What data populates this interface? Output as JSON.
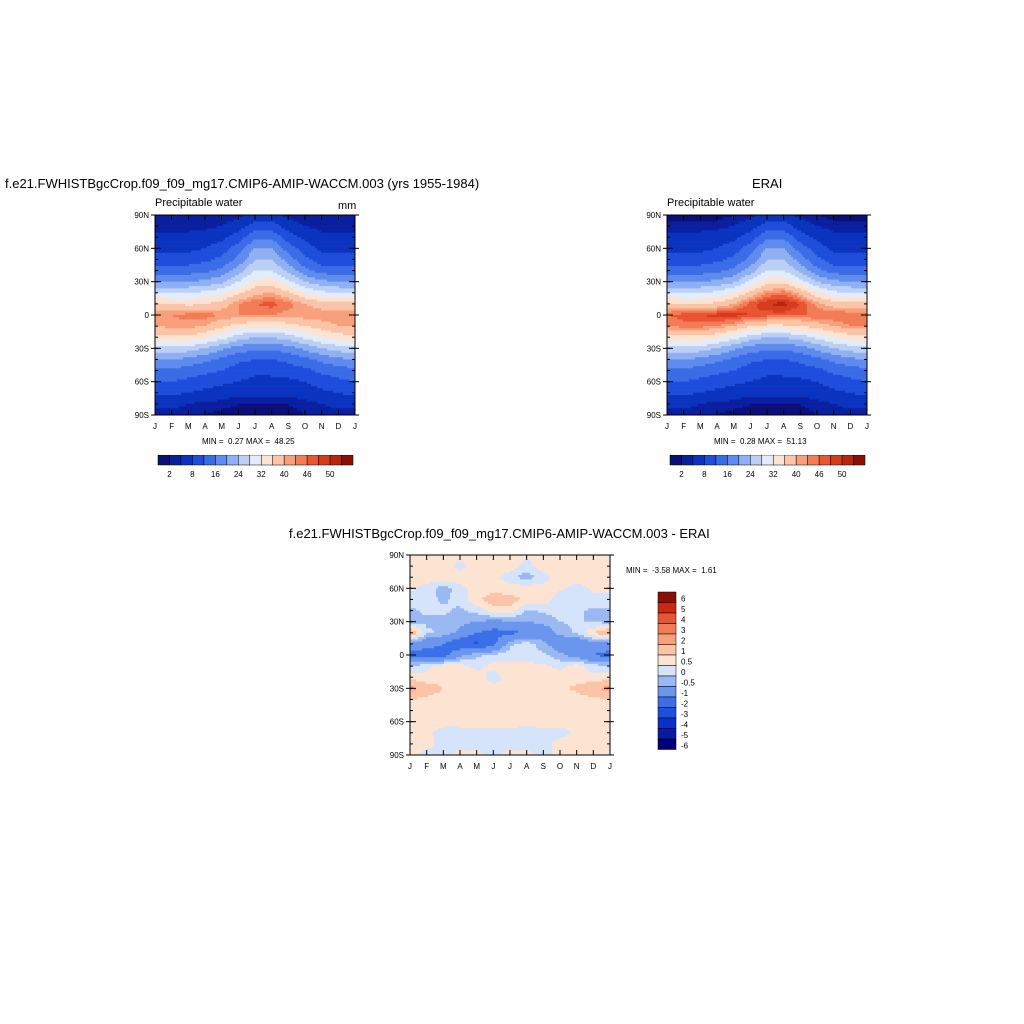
{
  "palette": {
    "main": [
      "#0a0f7a",
      "#0a1fa0",
      "#0a34c0",
      "#1f4ddc",
      "#3a6ce8",
      "#5e8bed",
      "#8fb0f2",
      "#bcd0f6",
      "#e3ecfb",
      "#fde4d2",
      "#fbc4a6",
      "#f8a07c",
      "#f27c55",
      "#e95533",
      "#d83a1e",
      "#b9260e",
      "#8b1004"
    ],
    "diff": [
      "#00007a",
      "#0a1aa0",
      "#0a30c8",
      "#1e50e0",
      "#3a6fe8",
      "#6a96ee",
      "#9ab9f3",
      "#d5e4fa",
      "#fde4d2",
      "#fbc4a6",
      "#f8a07c",
      "#f27c55",
      "#e95533",
      "#c72a10",
      "#8b1004"
    ]
  },
  "panels": {
    "model": {
      "title": "f.e21.FWHISTBgcCrop.f09_f09_mg17.CMIP6-AMIP-WACCM.003 (yrs 1955-1984)",
      "left_label": "Precipitable water",
      "right_label": "mm",
      "min_label": "MIN =",
      "min_value": "0.27",
      "max_label": "MAX =",
      "max_value": "48.25"
    },
    "obs": {
      "title": "ERAI",
      "left_label": "Precipitable water",
      "min_label": "MIN =",
      "min_value": "0.28",
      "max_label": "MAX =",
      "max_value": "51.13"
    },
    "diff": {
      "title": "f.e21.FWHISTBgcCrop.f09_f09_mg17.CMIP6-AMIP-WACCM.003 - ERAI",
      "min_label": "MIN =",
      "min_value": "-3.58",
      "max_label": "MAX =",
      "max_value": "1.61"
    }
  },
  "chart_data": [
    {
      "type": "heatmap",
      "panel": "model",
      "title": "f.e21.FWHISTBgcCrop.f09_f09_mg17.CMIP6-AMIP-WACCM.003 (yrs 1955-1984)",
      "subtitle_left": "Precipitable water",
      "units": "mm",
      "x_ticks": [
        "J",
        "F",
        "M",
        "A",
        "M",
        "J",
        "J",
        "A",
        "S",
        "O",
        "N",
        "D",
        "J"
      ],
      "y_ticks": [
        "90N",
        "60N",
        "30N",
        "0",
        "30S",
        "60S",
        "90S"
      ],
      "y_values": [
        90,
        60,
        30,
        0,
        -30,
        -60,
        -90
      ],
      "zmin": 0.27,
      "zmax": 48.25,
      "colorbar_labels": [
        "2",
        "8",
        "16",
        "24",
        "32",
        "40",
        "46",
        "50"
      ],
      "lat": [
        90,
        80,
        70,
        60,
        50,
        40,
        30,
        20,
        10,
        0,
        -10,
        -20,
        -30,
        -40,
        -50,
        -60,
        -70,
        -80,
        -90
      ],
      "months": [
        "Jan",
        "Feb",
        "Mar",
        "Apr",
        "May",
        "Jun",
        "Jul",
        "Aug",
        "Sep",
        "Oct",
        "Nov",
        "Dec",
        "Jan"
      ],
      "values": [
        [
          2,
          2,
          2,
          2,
          2,
          3,
          5,
          5,
          3,
          2,
          2,
          2,
          2
        ],
        [
          3,
          3,
          3,
          3,
          4,
          6,
          10,
          10,
          6,
          4,
          3,
          3,
          3
        ],
        [
          5,
          5,
          5,
          6,
          7,
          10,
          15,
          15,
          10,
          7,
          5,
          5,
          5
        ],
        [
          7,
          7,
          7,
          8,
          10,
          14,
          20,
          20,
          14,
          10,
          7,
          7,
          7
        ],
        [
          10,
          10,
          10,
          11,
          13,
          17,
          24,
          24,
          18,
          13,
          10,
          10,
          10
        ],
        [
          14,
          14,
          14,
          15,
          17,
          22,
          28,
          28,
          23,
          17,
          14,
          14,
          14
        ],
        [
          20,
          20,
          20,
          21,
          23,
          28,
          33,
          34,
          29,
          24,
          21,
          20,
          20
        ],
        [
          28,
          28,
          28,
          29,
          31,
          35,
          39,
          40,
          37,
          32,
          29,
          28,
          28
        ],
        [
          37,
          36,
          35,
          36,
          38,
          42,
          44,
          45,
          43,
          40,
          38,
          37,
          37
        ],
        [
          42,
          42,
          43,
          43,
          42,
          42,
          42,
          42,
          41,
          42,
          42,
          42,
          42
        ],
        [
          40,
          41,
          41,
          40,
          37,
          34,
          33,
          33,
          34,
          36,
          38,
          40,
          40
        ],
        [
          35,
          35,
          35,
          33,
          30,
          26,
          24,
          24,
          26,
          29,
          32,
          34,
          35
        ],
        [
          27,
          27,
          26,
          24,
          21,
          18,
          17,
          17,
          18,
          21,
          24,
          26,
          27
        ],
        [
          20,
          20,
          19,
          17,
          15,
          13,
          12,
          12,
          13,
          15,
          17,
          19,
          20
        ],
        [
          15,
          15,
          14,
          13,
          12,
          10,
          9,
          9,
          10,
          11,
          13,
          14,
          15
        ],
        [
          12,
          12,
          11,
          10,
          9,
          8,
          7,
          7,
          7,
          8,
          10,
          11,
          12
        ],
        [
          9,
          9,
          8,
          7,
          6,
          5,
          5,
          5,
          5,
          6,
          7,
          8,
          9
        ],
        [
          5,
          5,
          4,
          3,
          3,
          2,
          2,
          2,
          2,
          3,
          4,
          5,
          5
        ],
        [
          3,
          3,
          2,
          2,
          1,
          1,
          1,
          1,
          1,
          2,
          2,
          3,
          3
        ]
      ]
    },
    {
      "type": "heatmap",
      "panel": "obs",
      "title": "ERAI",
      "subtitle_left": "Precipitable water",
      "x_ticks": [
        "J",
        "F",
        "M",
        "A",
        "M",
        "J",
        "J",
        "A",
        "S",
        "O",
        "N",
        "D",
        "J"
      ],
      "y_ticks": [
        "90N",
        "60N",
        "30N",
        "0",
        "30S",
        "60S",
        "90S"
      ],
      "y_values": [
        90,
        60,
        30,
        0,
        -30,
        -60,
        -90
      ],
      "zmin": 0.28,
      "zmax": 51.13,
      "colorbar_labels": [
        "2",
        "8",
        "16",
        "24",
        "32",
        "40",
        "46",
        "50"
      ],
      "lat": [
        90,
        80,
        70,
        60,
        50,
        40,
        30,
        20,
        10,
        0,
        -10,
        -20,
        -30,
        -40,
        -50,
        -60,
        -70,
        -80,
        -90
      ],
      "months": [
        "Jan",
        "Feb",
        "Mar",
        "Apr",
        "May",
        "Jun",
        "Jul",
        "Aug",
        "Sep",
        "Oct",
        "Nov",
        "Dec",
        "Jan"
      ],
      "values": [
        [
          1,
          1,
          1,
          1,
          2,
          3,
          5,
          5,
          3,
          2,
          1,
          1,
          1
        ],
        [
          3,
          3,
          3,
          3,
          4,
          6,
          10,
          10,
          6,
          4,
          3,
          3,
          3
        ],
        [
          5,
          5,
          5,
          6,
          7,
          10,
          15,
          15,
          10,
          7,
          5,
          5,
          5
        ],
        [
          7,
          7,
          7,
          8,
          10,
          14,
          20,
          20,
          14,
          10,
          7,
          7,
          7
        ],
        [
          10,
          10,
          10,
          11,
          13,
          17,
          24,
          24,
          18,
          13,
          10,
          10,
          10
        ],
        [
          14,
          14,
          14,
          15,
          17,
          22,
          28,
          28,
          23,
          17,
          14,
          14,
          14
        ],
        [
          20,
          20,
          20,
          21,
          23,
          29,
          34,
          35,
          30,
          24,
          21,
          20,
          20
        ],
        [
          28,
          28,
          28,
          29,
          32,
          37,
          42,
          43,
          39,
          33,
          29,
          28,
          28
        ],
        [
          37,
          36,
          36,
          37,
          40,
          45,
          48,
          49,
          46,
          41,
          38,
          37,
          37
        ],
        [
          44,
          45,
          46,
          47,
          47,
          46,
          45,
          45,
          44,
          44,
          44,
          44,
          44
        ],
        [
          42,
          43,
          43,
          42,
          40,
          36,
          35,
          35,
          36,
          38,
          40,
          42,
          42
        ],
        [
          35,
          35,
          35,
          33,
          30,
          26,
          24,
          24,
          26,
          29,
          32,
          34,
          35
        ],
        [
          27,
          27,
          26,
          24,
          21,
          18,
          17,
          17,
          18,
          21,
          24,
          26,
          27
        ],
        [
          20,
          20,
          19,
          17,
          15,
          13,
          12,
          12,
          13,
          15,
          17,
          19,
          20
        ],
        [
          15,
          15,
          14,
          13,
          12,
          10,
          9,
          9,
          10,
          11,
          13,
          14,
          15
        ],
        [
          12,
          12,
          11,
          10,
          9,
          8,
          7,
          7,
          7,
          8,
          10,
          11,
          12
        ],
        [
          9,
          9,
          8,
          7,
          6,
          5,
          5,
          5,
          5,
          6,
          7,
          8,
          9
        ],
        [
          5,
          5,
          4,
          3,
          3,
          2,
          2,
          2,
          2,
          3,
          4,
          5,
          5
        ],
        [
          3,
          3,
          2,
          2,
          1,
          1,
          1,
          1,
          1,
          2,
          2,
          3,
          3
        ]
      ]
    },
    {
      "type": "heatmap",
      "panel": "diff",
      "title": "f.e21.FWHISTBgcCrop.f09_f09_mg17.CMIP6-AMIP-WACCM.003 - ERAI",
      "x_ticks": [
        "J",
        "F",
        "M",
        "A",
        "M",
        "J",
        "J",
        "A",
        "S",
        "O",
        "N",
        "D",
        "J"
      ],
      "y_ticks": [
        "90N",
        "60N",
        "30N",
        "0",
        "30S",
        "60S",
        "90S"
      ],
      "y_values": [
        90,
        60,
        30,
        0,
        -30,
        -60,
        -90
      ],
      "zmin": -3.58,
      "zmax": 1.61,
      "colorbar_labels": [
        "6",
        "5",
        "4",
        "3",
        "2",
        "1",
        "0.5",
        "0",
        "-0.5",
        "-1",
        "-2",
        "-3",
        "-4",
        "-5",
        "-6"
      ],
      "lat": [
        90,
        80,
        70,
        60,
        50,
        40,
        30,
        20,
        10,
        0,
        -10,
        -20,
        -30,
        -40,
        -50,
        -60,
        -70,
        -80,
        -90
      ],
      "months": [
        "Jan",
        "Feb",
        "Mar",
        "Apr",
        "May",
        "Jun",
        "Jul",
        "Aug",
        "Sep",
        "Oct",
        "Nov",
        "Dec",
        "Jan"
      ],
      "values": [
        [
          0.2,
          0.2,
          0.3,
          0.2,
          0.2,
          0.3,
          0.2,
          0.1,
          0.2,
          0.3,
          0.3,
          0.2,
          0.2
        ],
        [
          0.3,
          0.4,
          0.3,
          -0.2,
          0.3,
          0.4,
          0.3,
          -0.2,
          0.3,
          0.4,
          0.2,
          0.3,
          0.3
        ],
        [
          0.2,
          0.3,
          0.4,
          0.3,
          0.3,
          0.2,
          -0.3,
          -0.8,
          -0.2,
          0.2,
          0.3,
          0.2,
          0.2
        ],
        [
          0.1,
          -0.2,
          -0.8,
          -0.2,
          0.2,
          0.3,
          0.2,
          0.3,
          0.2,
          0.1,
          -0.2,
          0.1,
          0.1
        ],
        [
          -0.2,
          -0.3,
          -0.6,
          -0.3,
          0.4,
          0.8,
          0.7,
          0.4,
          0.3,
          -0.3,
          -0.2,
          -0.2,
          -0.2
        ],
        [
          -0.6,
          -0.4,
          -0.4,
          -0.6,
          -0.3,
          0.3,
          0.4,
          -0.6,
          -0.4,
          -0.3,
          -0.4,
          -0.6,
          -0.6
        ],
        [
          -0.7,
          -0.6,
          -0.6,
          -0.8,
          -1.0,
          -1.2,
          -1.1,
          -1.0,
          -0.8,
          -0.5,
          -0.4,
          -0.6,
          -0.7
        ],
        [
          1.2,
          -0.4,
          -0.6,
          -1.2,
          -2.0,
          -2.4,
          -2.2,
          -2.0,
          -1.6,
          -0.8,
          -0.4,
          0.5,
          1.2
        ],
        [
          -1.2,
          -1.6,
          -2.0,
          -2.8,
          -3.2,
          -2.2,
          -0.6,
          -0.2,
          -0.8,
          -1.6,
          -1.8,
          -1.4,
          -1.2
        ],
        [
          -2.4,
          -2.6,
          -2.4,
          -1.2,
          -0.6,
          -0.4,
          -0.3,
          -0.3,
          -0.4,
          -0.8,
          -1.4,
          -2.0,
          -2.4
        ],
        [
          -0.4,
          -0.2,
          0.3,
          0.2,
          -0.2,
          0.2,
          0.3,
          0.2,
          0.1,
          -0.2,
          0.2,
          -0.3,
          -0.4
        ],
        [
          0.3,
          0.2,
          0.3,
          0.4,
          0.4,
          -0.3,
          0.3,
          0.4,
          0.3,
          0.4,
          0.3,
          0.2,
          0.3
        ],
        [
          1.2,
          0.8,
          0.5,
          0.3,
          0.3,
          0.2,
          0.2,
          0.3,
          0.4,
          0.4,
          0.6,
          0.9,
          1.2
        ],
        [
          0.5,
          0.4,
          0.3,
          0.3,
          0.2,
          0.3,
          0.4,
          0.5,
          0.4,
          0.3,
          0.3,
          0.4,
          0.5
        ],
        [
          0.4,
          0.3,
          0.3,
          0.4,
          0.4,
          0.2,
          0.3,
          0.3,
          0.2,
          0.3,
          0.3,
          0.3,
          0.4
        ],
        [
          0.3,
          0.3,
          0.2,
          0.3,
          0.3,
          0.3,
          0.4,
          0.2,
          0.3,
          0.2,
          0.3,
          0.3,
          0.3
        ],
        [
          0.2,
          0.1,
          -0.2,
          -0.3,
          -0.2,
          -0.2,
          -0.3,
          -0.3,
          -0.2,
          -0.2,
          0.1,
          0.2,
          0.2
        ],
        [
          0.3,
          0.2,
          -0.2,
          -0.3,
          -0.3,
          -0.2,
          -0.2,
          -0.3,
          -0.2,
          0.2,
          0.3,
          0.3,
          0.3
        ],
        [
          0.2,
          -0.2,
          -0.2,
          0.2,
          0.2,
          -0.2,
          0.2,
          0.2,
          -0.2,
          0.2,
          0.2,
          0.2,
          0.2
        ]
      ]
    }
  ]
}
